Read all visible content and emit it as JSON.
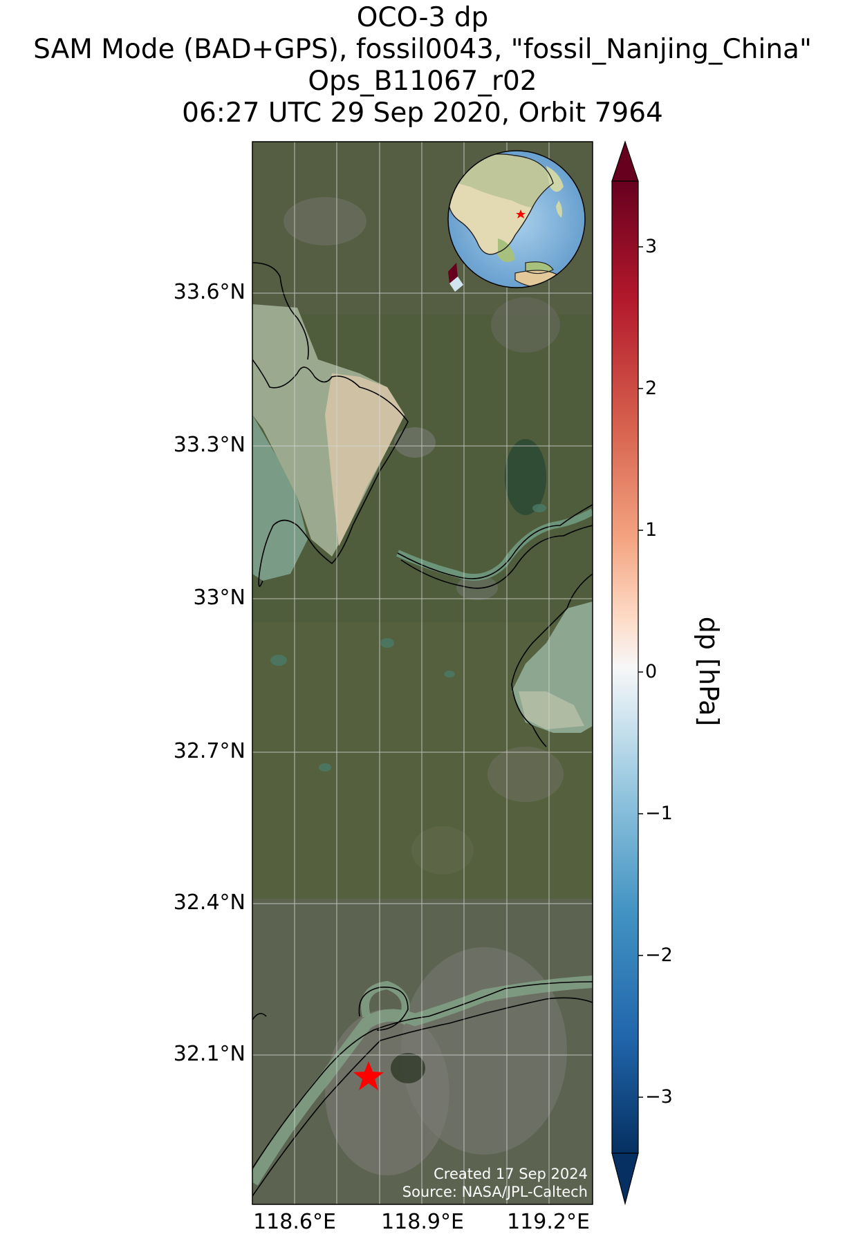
{
  "title": {
    "line1": "OCO-3 dp",
    "line2": "SAM Mode (BAD+GPS), fossil0043, \"fossil_Nanjing_China\"",
    "line3": "Ops_B11067_r02",
    "line4": "06:27 UTC 29 Sep 2020, Orbit 7964"
  },
  "map": {
    "lat_ticks": [
      "33.6°N",
      "33.3°N",
      "33°N",
      "32.7°N",
      "32.4°N",
      "32.1°N"
    ],
    "lon_ticks": [
      "118.6°E",
      "118.9°E",
      "119.2°E"
    ],
    "target_marker": {
      "name": "fossil_Nanjing_China",
      "color": "#ff0000",
      "icon": "star-icon"
    },
    "inset": "globe-icon"
  },
  "colorbar": {
    "label": "dp [hPa]",
    "ticks": [
      "3",
      "2",
      "1",
      "0",
      "−1",
      "−2",
      "−3"
    ],
    "colormap": "RdBu_r",
    "colors": {
      "max": "#67001f",
      "mid": "#f7f7f7",
      "min": "#053061"
    }
  },
  "credit": {
    "created": "Created 17 Sep 2024",
    "source": "Source: NASA/JPL-Caltech"
  }
}
